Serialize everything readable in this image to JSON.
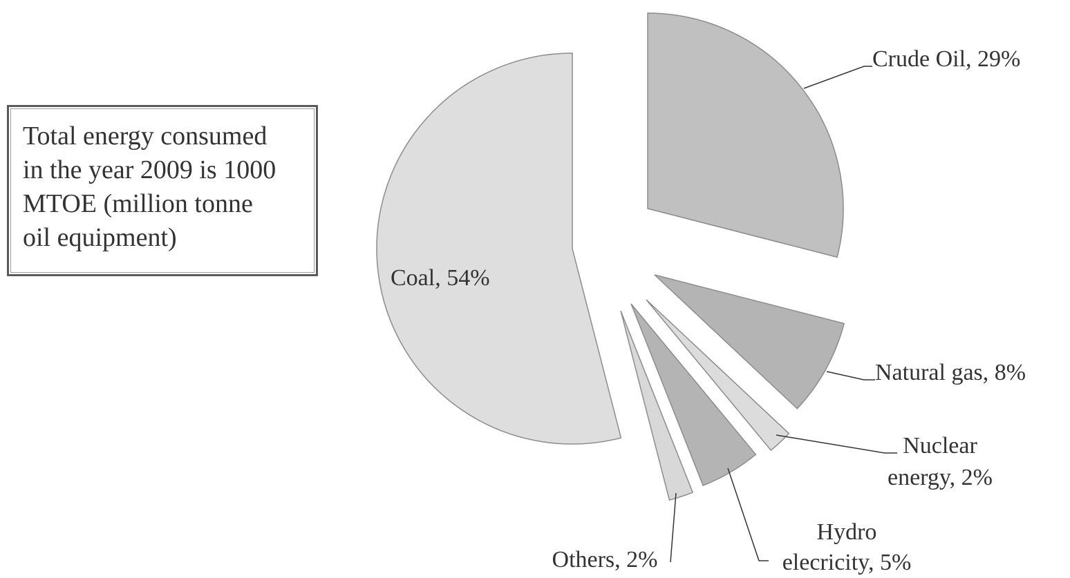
{
  "note": {
    "text": "Total energy consumed\nin the year 2009 is 1000\nMTOE (million tonne\noil equipment)"
  },
  "chart_data": {
    "type": "pie",
    "title": "",
    "unit": "%",
    "slices": [
      {
        "name": "Crude Oil",
        "value": 29,
        "label_lines": [
          "Crude Oil, 29%"
        ],
        "color": "#c0c0c0"
      },
      {
        "name": "Natural gas",
        "value": 8,
        "label_lines": [
          "Natural gas, 8%"
        ],
        "color": "#b4b4b4"
      },
      {
        "name": "Nuclear energy",
        "value": 2,
        "label_lines": [
          "Nuclear",
          "energy, 2%"
        ],
        "color": "#dcdcdc"
      },
      {
        "name": "Hydro elecricity",
        "value": 5,
        "label_lines": [
          "Hydro",
          "elecricity, 5%"
        ],
        "color": "#b4b4b4"
      },
      {
        "name": "Others",
        "value": 2,
        "label_lines": [
          "Others, 2%"
        ],
        "color": "#d8d8d8"
      },
      {
        "name": "Coal",
        "value": 54,
        "label_lines": [
          "Coal, 54%"
        ],
        "color": "#dedede"
      }
    ],
    "exploded": true,
    "legend": "none"
  }
}
